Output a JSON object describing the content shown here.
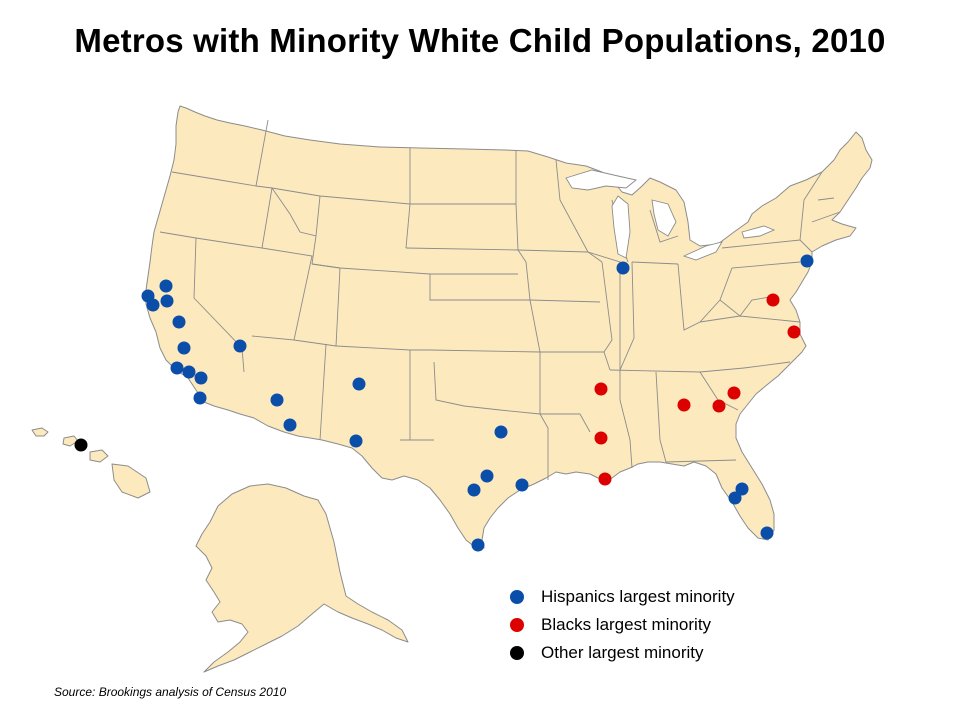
{
  "title": "Metros with Minority White Child Populations, 2010",
  "source": "Source: Brookings analysis of Census 2010",
  "colors": {
    "land": "#FCE9BE",
    "border": "#8C8C8C",
    "hispanic": "#0A4EAA",
    "black": "#DD0000",
    "other": "#000000"
  },
  "legend": [
    {
      "key": "hispanic",
      "label": "Hispanics largest minority"
    },
    {
      "key": "black",
      "label": "Blacks largest minority"
    },
    {
      "key": "other",
      "label": "Other largest minority"
    }
  ]
}
